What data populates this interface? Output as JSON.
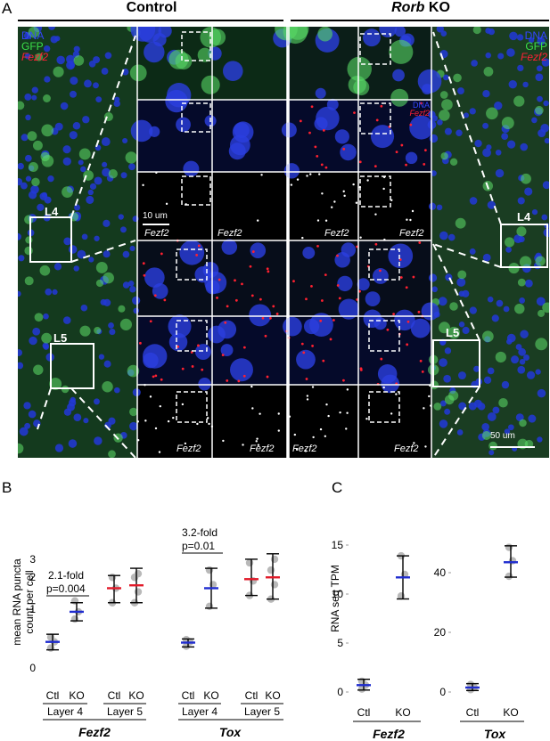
{
  "panel_labels": {
    "a": "A",
    "b": "B",
    "c": "C"
  },
  "panel_a": {
    "header_control": "Control",
    "header_ko_gene": "Rorb",
    "header_ko_suffix": " KO",
    "legend_left": {
      "dna": "DNA",
      "gfp": "GFP",
      "gene": "Fezf2"
    },
    "legend_right": {
      "dna": "DNA",
      "gfp": "GFP",
      "gene": "Fezf2"
    },
    "region_l4": "L4",
    "region_l5": "L5",
    "scale_small": "10 um",
    "scale_large": "50 um",
    "tile_gene": "Fezf2",
    "inset_dna": "DNA",
    "inset_gene": "Fezf2",
    "colors": {
      "dna": "#2b35ff",
      "gfp": "#36d13a",
      "gene": "#e0102a",
      "signal": "#ffffff"
    }
  },
  "panel_b": {
    "ylabel_line1": "mean RNA puncta",
    "ylabel_line2": "count per cell",
    "yticks": [
      "0",
      "1",
      "2",
      "3"
    ],
    "annotations": [
      {
        "fold": "2.1-fold",
        "p": "p=0.004"
      },
      {
        "fold": "3.2-fold",
        "p": "p=0.01"
      }
    ],
    "groups": [
      {
        "ctl": "Ctl",
        "ko": "KO",
        "layer": "Layer 4"
      },
      {
        "ctl": "Ctl",
        "ko": "KO",
        "layer": "Layer 5"
      },
      {
        "ctl": "Ctl",
        "ko": "KO",
        "layer": "Layer 4"
      },
      {
        "ctl": "Ctl",
        "ko": "KO",
        "layer": "Layer 5"
      }
    ],
    "genes": [
      "Fezf2",
      "Tox"
    ]
  },
  "panel_c": {
    "ylabel": "RNA seq TPM",
    "yticks_left": [
      "0",
      "5",
      "10",
      "15"
    ],
    "yticks_right": [
      "0",
      "20",
      "40"
    ],
    "xticks": [
      "Ctl",
      "KO",
      "Ctl",
      "KO"
    ],
    "genes": [
      "Fezf2",
      "Tox"
    ]
  },
  "chart_data": [
    {
      "type": "scatter",
      "ylabel": "mean RNA puncta count per cell",
      "ylim": [
        0,
        3
      ],
      "series": [
        {
          "name": "Fezf2 Layer 4 Ctl",
          "mean": 0.72,
          "sd": [
            0.5,
            0.93
          ],
          "points": [
            0.55,
            0.72,
            0.85
          ],
          "color": "#1f2ccf"
        },
        {
          "name": "Fezf2 Layer 4 KO",
          "mean": 1.55,
          "sd": [
            1.3,
            1.8
          ],
          "points": [
            1.35,
            1.55,
            1.85
          ],
          "color": "#1f2ccf"
        },
        {
          "name": "Fezf2 Layer 5 Ctl",
          "mean": 2.2,
          "sd": [
            1.8,
            2.55
          ],
          "points": [
            1.8,
            2.2,
            2.5
          ],
          "color": "#e21b2a"
        },
        {
          "name": "Fezf2 Layer 5 KO",
          "mean": 2.28,
          "sd": [
            1.8,
            2.75
          ],
          "points": [
            1.8,
            2.1,
            2.5,
            2.6
          ],
          "color": "#e21b2a"
        },
        {
          "name": "Tox Layer 4 Ctl",
          "mean": 0.7,
          "sd": [
            0.58,
            0.8
          ],
          "points": [
            0.6,
            0.72,
            0.78
          ],
          "color": "#1f2ccf"
        },
        {
          "name": "Tox Layer 4 KO",
          "mean": 2.2,
          "sd": [
            1.65,
            2.75
          ],
          "points": [
            1.7,
            2.3,
            2.7
          ],
          "color": "#1f2ccf"
        },
        {
          "name": "Tox Layer 5 Ctl",
          "mean": 2.45,
          "sd": [
            2.0,
            3.0
          ],
          "points": [
            2.0,
            2.4,
            2.9
          ],
          "color": "#e21b2a"
        },
        {
          "name": "Tox Layer 5 KO",
          "mean": 2.5,
          "sd": [
            1.9,
            3.15
          ],
          "points": [
            1.9,
            2.3,
            2.7,
            3.0
          ],
          "color": "#e21b2a"
        }
      ]
    },
    {
      "type": "scatter",
      "ylabel": "RNA seq TPM",
      "ylim": [
        0,
        15
      ],
      "series": [
        {
          "name": "Fezf2 Ctl",
          "mean": 0.7,
          "sd": [
            0.2,
            1.3
          ],
          "points": [
            0.3,
            0.7,
            1.1
          ],
          "color": "#1f2ccf"
        },
        {
          "name": "Fezf2 KO",
          "mean": 11.7,
          "sd": [
            9.5,
            13.9
          ],
          "points": [
            9.8,
            12.0,
            13.9
          ],
          "color": "#1f2ccf"
        }
      ]
    },
    {
      "type": "scatter",
      "ylabel": "RNA seq TPM",
      "ylim": [
        0,
        50
      ],
      "series": [
        {
          "name": "Tox Ctl",
          "mean": 1.5,
          "sd": [
            0.5,
            2.8
          ],
          "points": [
            0.8,
            1.5,
            2.5
          ],
          "color": "#1f2ccf"
        },
        {
          "name": "Tox KO",
          "mean": 43.5,
          "sd": [
            38.5,
            49.0
          ],
          "points": [
            38.8,
            44.0,
            48.5
          ],
          "color": "#1f2ccf"
        }
      ]
    }
  ]
}
